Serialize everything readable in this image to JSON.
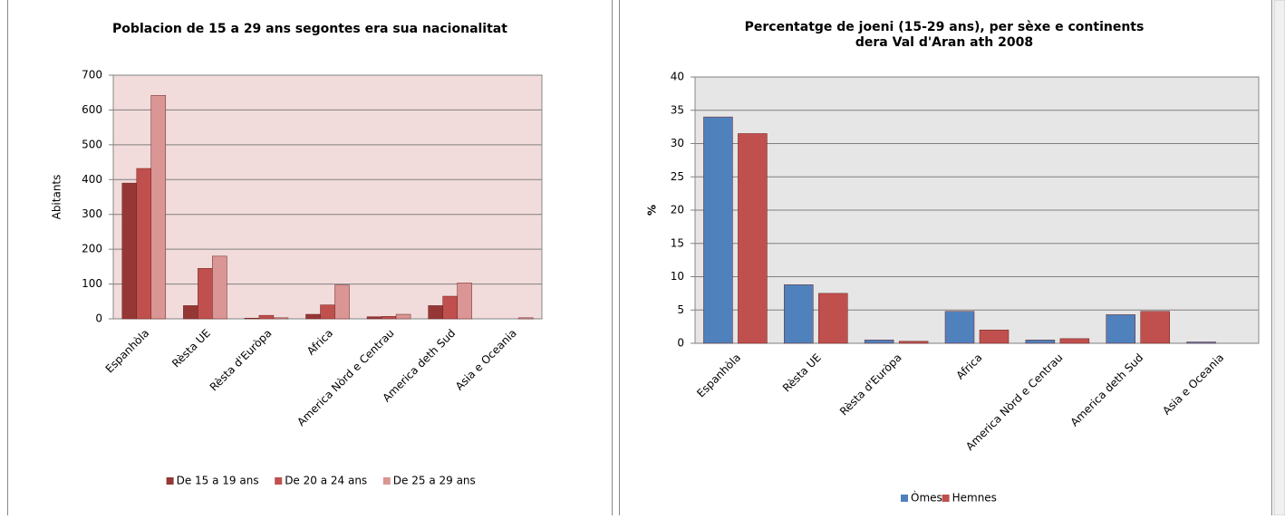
{
  "chart_data": [
    {
      "type": "bar",
      "title": "Poblacion de 15 a 29 ans segontes era sua nacionalitat",
      "ylabel": "Abitants",
      "categories": [
        "Espanhòla",
        "Rèsta UE",
        "Rèsta d'Euròpa",
        "Africa",
        "America Nòrd e Centrau",
        "America deth Sud",
        "Asia e Oceania"
      ],
      "series": [
        {
          "name": "De 15 a 19 ans",
          "color": "#953735",
          "values": [
            390,
            38,
            2,
            13,
            6,
            38,
            0
          ]
        },
        {
          "name": "De 20 a 24 ans",
          "color": "#c0504d",
          "values": [
            432,
            145,
            10,
            40,
            7,
            65,
            0
          ]
        },
        {
          "name": "De 25 a 29 ans",
          "color": "#d99694",
          "values": [
            642,
            180,
            3,
            97,
            13,
            103,
            3
          ]
        }
      ],
      "ylim": [
        0,
        700
      ],
      "yticks": [
        0,
        100,
        200,
        300,
        400,
        500,
        600,
        700
      ],
      "grid": true,
      "plot_background": "#f2dcdb",
      "legend": "bottom"
    },
    {
      "type": "bar",
      "title": [
        "Percentatge de joeni (15-29 ans), per sèxe e continents",
        "dera Val d'Aran ath 2008"
      ],
      "ylabel": "%",
      "categories": [
        "Espanhòla",
        "Rèsta UE",
        "Rèsta d'Euròpa",
        "Africa",
        "America Nòrd e Centrau",
        "America deth Sud",
        "Asia e Oceania"
      ],
      "series": [
        {
          "name": "Òmes",
          "color": "#4f81bd",
          "values": [
            34,
            8.8,
            0.5,
            4.8,
            0.5,
            4.3,
            0.2
          ]
        },
        {
          "name": "Hemnes",
          "color": "#c0504d",
          "values": [
            31.5,
            7.5,
            0.3,
            2,
            0.7,
            4.8,
            0
          ]
        }
      ],
      "ylim": [
        0,
        40
      ],
      "yticks": [
        0,
        5,
        10,
        15,
        20,
        25,
        30,
        35,
        40
      ],
      "grid": true,
      "plot_background": "#e6e6e6",
      "legend": "bottom"
    }
  ]
}
